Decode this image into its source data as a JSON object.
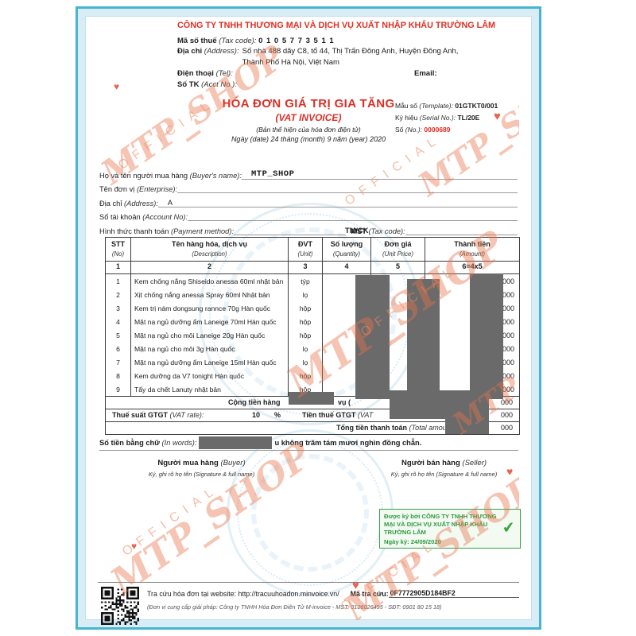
{
  "company": {
    "name": "CÔNG TY TNHH THƯƠNG MẠI VÀ DỊCH VỤ XUẤT NHẬP KHẨU TRƯỜNG LÂM",
    "tax_label": "Mã số thuế",
    "tax_label_en": "(Tax code):",
    "tax_code": "0 1 0 5 7 7 3 5 1 1",
    "address_label": "Địa chỉ",
    "address_label_en": "(Address):",
    "address_line1": "Số nhà 488 dãy C8, tổ 44, Thị Trấn Đông Anh, Huyện Đông Anh,",
    "address_line2": "Thành Phố Hà Nội, Việt Nam",
    "tel_label": "Điện thoại",
    "tel_label_en": "(Tel):",
    "email_label": "Email:",
    "account_label": "Số TK",
    "account_label_en": "(Acct No.):"
  },
  "invoice": {
    "title": "HÓA ĐƠN GIÁ TRỊ GIA TĂNG",
    "subtitle": "(VAT INVOICE)",
    "display_note": "(Bản thể hiện của hóa đơn điện tử)",
    "date_line": "Ngày (date) 24 tháng (month) 9 năm (year) 2020",
    "form_label": "Mẫu số",
    "form_label_en": "(Template):",
    "form_value": "01GTKT0/001",
    "serial_label": "Ký hiệu",
    "serial_label_en": "(Serial No.):",
    "serial_value": "TL/20E",
    "number_label": "Số",
    "number_label_en": "(No.):",
    "number_value": "0000689"
  },
  "buyer": {
    "name_label": "Họ và tên người mua hàng",
    "name_label_en": "(Buyer's name):",
    "name_value": "MTP_SHOP",
    "unit_label": "Tên đơn vị",
    "unit_label_en": "(Enterprise):",
    "address_label": "Địa chỉ",
    "address_label_en": "(Address):",
    "address_value": "A",
    "account_label": "Số tài khoản",
    "account_label_en": "(Account No):",
    "payment_label": "Hình thức thanh toán",
    "payment_label_en": "(Payment method):",
    "payment_value": "TM/CK",
    "mst_label": "MST",
    "mst_label_en": "(Tax code):"
  },
  "table": {
    "columns": [
      {
        "vi": "STT",
        "en": "(No)",
        "num": "1"
      },
      {
        "vi": "Tên hàng hóa, dịch vụ",
        "en": "(Description)",
        "num": "2"
      },
      {
        "vi": "ĐVT",
        "en": "(Unit)",
        "num": "3"
      },
      {
        "vi": "Số lượng",
        "en": "(Quantity)",
        "num": "4"
      },
      {
        "vi": "Đơn giá",
        "en": "(Unit Price)",
        "num": "5"
      },
      {
        "vi": "Thành tiền",
        "en": "(Amount)",
        "num": "6=4x5"
      }
    ],
    "rows": [
      {
        "no": "1",
        "name": "Kem chống nắng Shiseido anessa 60ml nhật bản",
        "unit": "týp",
        "amount_visible": "000"
      },
      {
        "no": "2",
        "name": "Xịt chống nắng anessa Spray 60ml Nhật bản",
        "unit": "lọ",
        "amount_visible": "000"
      },
      {
        "no": "3",
        "name": "Kem trị nám dongsung rannce 70g Hàn quốc",
        "unit": "hộp",
        "amount_visible": "000"
      },
      {
        "no": "4",
        "name": "Mặt nạ ngủ dưỡng ẩm Laneige 70ml Hàn quốc",
        "unit": "hộp",
        "amount_visible": "000"
      },
      {
        "no": "5",
        "name": "Mặt nạ ngủ cho môi Laneige 20g Hàn quốc",
        "unit": "hộp",
        "amount_visible": "000"
      },
      {
        "no": "6",
        "name": "Mặt nạ ngủ cho môi 3g Hàn quốc",
        "unit": "lọ",
        "amount_visible": "000"
      },
      {
        "no": "7",
        "name": "Mặt nạ ngủ dưỡng ẩm Laneige 15ml Hàn quốc",
        "unit": "lọ",
        "amount_visible": "000"
      },
      {
        "no": "8",
        "name": "Kem dưỡng da V7 tonight Hàn quốc",
        "unit": "hộp",
        "amount_visible": "000"
      },
      {
        "no": "9",
        "name": "Tẩy da chết Lanuty nhật bản",
        "unit": "hộp",
        "amount_visible": "000"
      }
    ]
  },
  "totals": {
    "subtotal_prefix": "Cộng tiền hàng",
    "subtotal_mid": "vụ (",
    "subtotal_amount_visible": "000",
    "vat_rate_label": "Thuế suất GTGT",
    "vat_rate_label_en": "(VAT rate):",
    "vat_rate_value": "10",
    "vat_rate_unit": "%",
    "vat_amount_label": "Tiền thuế GTGT",
    "vat_amount_label_en": "(VAT",
    "vat_amount_visible": "000",
    "grand_total_label": "Tổng tiền thanh toán",
    "grand_total_label_en": "(Total amount):",
    "grand_total_visible": "000"
  },
  "amount_in_words": {
    "label": "Số tiền bằng chữ",
    "label_en": "(In words):",
    "visible_fragment": "u không trăm tám mươi nghìn đồng chẵn."
  },
  "signatures": {
    "buyer_title": "Người mua hàng",
    "buyer_title_en": "(Buyer)",
    "buyer_sub": "Ký, ghi rõ họ tên (Signature & full name)",
    "seller_title": "Người bán hàng",
    "seller_title_en": "(Seller)",
    "seller_sub": "Ký, ghi rõ họ tên (Signature & full name)"
  },
  "digital_signature": {
    "signed_by_text": "Được ký bởi CÔNG TY TNHH THƯƠNG MẠI VÀ DỊCH VỤ XUẤT NHẬP KHẨU TRƯỜNG LÂM",
    "date_label": "Ngày ký:",
    "date_value": "24/09/2020",
    "check_icon": "✔"
  },
  "footer": {
    "lookup_text": "Tra cứu hóa đơn tại website: http://tracuuhoadon.minvoice.vn/",
    "code_label": "Mã tra cứu:",
    "code_value": "0F7772905D184BF2",
    "provider_text": "(Đơn vị cung cấp giải pháp: Công ty TNHH Hóa Đơn Điện Tử M-invoice - MST: 0106026495 - SĐT: 0901 80 15 18)"
  },
  "watermark": {
    "shop_text": "MTP_SHOP",
    "official_text": "OFFICIAL",
    "heart": "♥"
  },
  "colors": {
    "accent_red": "#d93025",
    "frame_teal": "#47b5d2",
    "sign_green": "#2f9e44",
    "redaction_gray": "#6a6a6a",
    "watermark_orange": "#e8734b"
  }
}
